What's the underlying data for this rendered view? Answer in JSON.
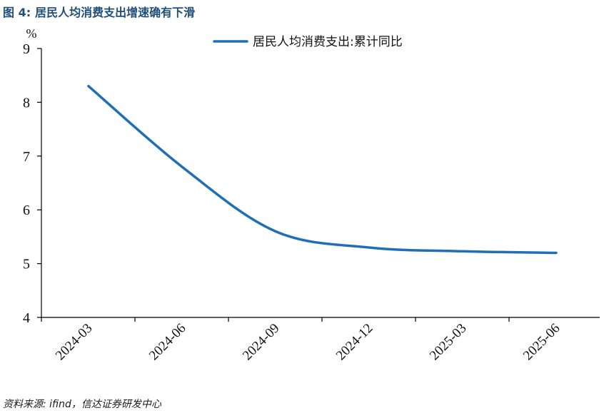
{
  "figure": {
    "title_prefix": "图 4:",
    "title": "居民人均消费支出增速确有下滑",
    "source": "资料来源: ifind，信达证券研发中心"
  },
  "colors": {
    "line": "#1f6fb8",
    "title": "#1f4e79",
    "axis": "#000000"
  },
  "chart_data": {
    "type": "line",
    "title": "",
    "xlabel": "",
    "ylabel": "%",
    "ylim": [
      4,
      9
    ],
    "yticks": [
      4,
      5,
      6,
      7,
      8,
      9
    ],
    "xticks": [
      "2024-03",
      "2024-06",
      "2024-09",
      "2024-12",
      "2025-03",
      "2025-06"
    ],
    "legend_position": "top-right",
    "grid": false,
    "series": [
      {
        "name": "居民人均消费支出:累计同比",
        "x": [
          "2024-03",
          "2024-06",
          "2024-09",
          "2024-12",
          "2025-03",
          "2025-06"
        ],
        "values": [
          8.3,
          6.8,
          5.6,
          5.3,
          5.23,
          5.2
        ]
      }
    ]
  }
}
